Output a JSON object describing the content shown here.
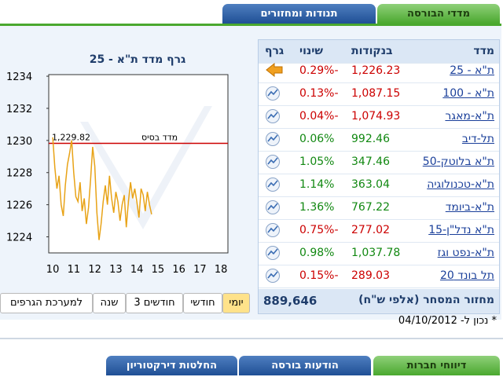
{
  "tabs": [
    {
      "label": "מדדי הבורסה",
      "active": true
    },
    {
      "label": "תנודות ומחזורים",
      "active": false
    }
  ],
  "table": {
    "headers": [
      "מדד",
      "בנקודות",
      "שינוי",
      "גרף"
    ],
    "selected": 0,
    "rows": [
      [
        "ת\"א - 25",
        "1,226.23",
        "-0.29%"
      ],
      [
        "ת\"א - 100",
        "1,087.15",
        "-0.13%"
      ],
      [
        "ת\"א-מאגר",
        "1,074.93",
        "-0.04%"
      ],
      [
        "תל-דיב",
        "992.46",
        "0.06%"
      ],
      [
        "ת\"א בלוטק-50",
        "347.46",
        "1.05%"
      ],
      [
        "ת\"א-טכנולוגיה",
        "363.04",
        "1.14%"
      ],
      [
        "ת\"א-ביומד",
        "767.22",
        "1.36%"
      ],
      [
        "ת\"א נדל\"ן-15",
        "277.02",
        "-0.75%"
      ],
      [
        "ת\"א-נפט וגז",
        "1,037.78",
        "0.98%"
      ],
      [
        "תל בונד 20",
        "289.03",
        "-0.15%"
      ]
    ],
    "footer_label": "מחזור המסחר (אלפי ש\"ח)",
    "footer_value": "889,646"
  },
  "chart_data": {
    "type": "line",
    "title": "גרף מדד ת\"א - 25",
    "color": "#e8a317",
    "x": [
      10.0,
      10.1,
      10.2,
      10.3,
      10.4,
      10.5,
      10.6,
      10.7,
      10.8,
      10.9,
      11.0,
      11.1,
      11.2,
      11.3,
      11.4,
      11.5,
      11.6,
      11.7,
      11.8,
      11.9,
      12.0,
      12.1,
      12.2,
      12.3,
      12.4,
      12.5,
      12.6,
      12.7,
      12.8,
      12.9,
      13.0,
      13.1,
      13.2,
      13.3,
      13.4,
      13.5,
      13.6,
      13.7,
      13.8,
      13.9,
      14.0,
      14.1,
      14.2,
      14.3,
      14.4,
      14.5,
      14.6,
      14.7
    ],
    "values": [
      1230.2,
      1228.3,
      1227.0,
      1227.8,
      1226.0,
      1225.3,
      1227.2,
      1228.5,
      1229.2,
      1230.0,
      1228.0,
      1226.5,
      1226.2,
      1227.4,
      1225.6,
      1226.4,
      1224.8,
      1225.8,
      1227.6,
      1229.6,
      1228.4,
      1225.5,
      1223.8,
      1224.8,
      1226.2,
      1227.2,
      1226.0,
      1227.8,
      1226.4,
      1225.5,
      1226.8,
      1226.2,
      1225.0,
      1226.0,
      1226.6,
      1224.6,
      1226.2,
      1227.4,
      1226.4,
      1227.0,
      1226.2,
      1225.2,
      1227.0,
      1226.6,
      1225.6,
      1226.8,
      1226.0,
      1225.4
    ],
    "xlim": [
      9.81,
      18.33
    ],
    "xticks": [
      10,
      11,
      12,
      13,
      14,
      15,
      16,
      17,
      18
    ],
    "ylim": [
      1223.0,
      1234.1
    ],
    "yticks": [
      1224,
      1226,
      1228,
      1230,
      1232,
      1234
    ],
    "base": {
      "value": 1229.82,
      "label": "1,229.82"
    },
    "base_label": "מדד בסיס",
    "base_color": "#cc0000"
  },
  "periods": [
    {
      "label": "יומי",
      "active": true
    },
    {
      "label": "חודשי",
      "active": false
    },
    {
      "label": "3 חודשים",
      "active": false
    },
    {
      "label": "שנה",
      "active": false
    },
    {
      "label": "למערכת הגרפים",
      "active": false
    }
  ],
  "date_note": "* נכון ל- 04/10/2012",
  "bottom_tabs": [
    {
      "label": "דיווחי חברות",
      "active": true
    },
    {
      "label": "הודעות בורסה",
      "active": false
    },
    {
      "label": "החלטות דירקטוריון",
      "active": false
    }
  ]
}
